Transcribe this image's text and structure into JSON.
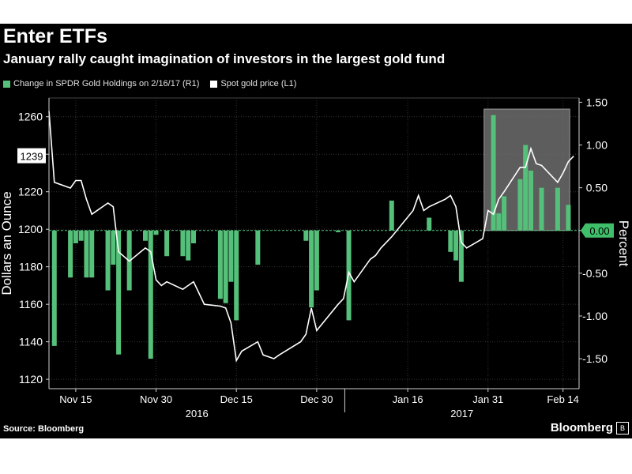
{
  "header": {
    "title": "Enter ETFs",
    "subtitle": "January rally caught imagination of investors in the largest gold fund"
  },
  "footer": {
    "source": "Source: Bloomberg",
    "brand": "Bloomberg"
  },
  "colors": {
    "background": "#000000",
    "bar": "#55c07a",
    "line": "#ffffff",
    "highlight_box": "#6d6d6d",
    "zero_tag": "#3fbf6a"
  },
  "chart_data": {
    "type": "line",
    "legend": [
      {
        "label": "Change in SPDR Gold Holdings on 2/16/17 (R1)",
        "color": "#55c07a"
      },
      {
        "label": "Spot gold price (L1)",
        "color": "#ffffff"
      }
    ],
    "left_axis": {
      "label": "Dollars an Ounce",
      "range": [
        1115,
        1270
      ],
      "ticks": [
        1120,
        1140,
        1160,
        1180,
        1200,
        1220,
        1240,
        1260
      ]
    },
    "right_axis": {
      "label": "Percent",
      "range": [
        -1.85,
        1.55
      ],
      "ticks": [
        "1.50",
        "1.00",
        "0.50",
        "0.00",
        "-0.50",
        "-1.00",
        "-1.50"
      ]
    },
    "x_ticks": [
      "Nov 15",
      "Nov 30",
      "Dec 15",
      "Dec 30",
      "Jan 16",
      "Jan 31",
      "Feb 14"
    ],
    "x_years": [
      "2016",
      "2017"
    ],
    "current_price_label": "1239",
    "zero_label": "0.00",
    "highlight_period": [
      "Jan 31",
      "Feb 16"
    ],
    "bars": [
      {
        "date": "Nov 11",
        "value": -1.35
      },
      {
        "date": "Nov 14",
        "value": -0.55
      },
      {
        "date": "Nov 15",
        "value": -0.15
      },
      {
        "date": "Nov 16",
        "value": -0.12
      },
      {
        "date": "Nov 17",
        "value": -0.55
      },
      {
        "date": "Nov 18",
        "value": -0.55
      },
      {
        "date": "Nov 21",
        "value": -0.7
      },
      {
        "date": "Nov 22",
        "value": -0.4
      },
      {
        "date": "Nov 23",
        "value": -1.45
      },
      {
        "date": "Nov 25",
        "value": -0.7
      },
      {
        "date": "Nov 28",
        "value": -0.12
      },
      {
        "date": "Nov 29",
        "value": -1.5
      },
      {
        "date": "Nov 30",
        "value": -0.05
      },
      {
        "date": "Dec 2",
        "value": -0.3
      },
      {
        "date": "Dec 5",
        "value": -0.3
      },
      {
        "date": "Dec 6",
        "value": -0.35
      },
      {
        "date": "Dec 7",
        "value": -0.15
      },
      {
        "date": "Dec 12",
        "value": -0.8
      },
      {
        "date": "Dec 13",
        "value": -0.85
      },
      {
        "date": "Dec 14",
        "value": -0.6
      },
      {
        "date": "Dec 15",
        "value": -1.05
      },
      {
        "date": "Dec 19",
        "value": -0.4
      },
      {
        "date": "Dec 28",
        "value": -0.12
      },
      {
        "date": "Dec 29",
        "value": -0.9
      },
      {
        "date": "Dec 30",
        "value": -0.7
      },
      {
        "date": "Jan 3",
        "value": -0.02
      },
      {
        "date": "Jan 5",
        "value": -1.05
      },
      {
        "date": "Jan 13",
        "value": 0.35
      },
      {
        "date": "Jan 20",
        "value": 0.15
      },
      {
        "date": "Jan 24",
        "value": -0.25
      },
      {
        "date": "Jan 25",
        "value": -0.35
      },
      {
        "date": "Jan 26",
        "value": -0.6
      },
      {
        "date": "Feb 1",
        "value": 1.35
      },
      {
        "date": "Feb 2",
        "value": 0.2
      },
      {
        "date": "Feb 3",
        "value": 0.4
      },
      {
        "date": "Feb 6",
        "value": 0.6
      },
      {
        "date": "Feb 7",
        "value": 1.0
      },
      {
        "date": "Feb 8",
        "value": 0.7
      },
      {
        "date": "Feb 10",
        "value": 0.5
      },
      {
        "date": "Feb 13",
        "value": 0.5
      },
      {
        "date": "Feb 15",
        "value": 0.3
      }
    ],
    "price_series": [
      {
        "date": "Nov 10",
        "value": 1263
      },
      {
        "date": "Nov 11",
        "value": 1225
      },
      {
        "date": "Nov 14",
        "value": 1222
      },
      {
        "date": "Nov 15",
        "value": 1226
      },
      {
        "date": "Nov 16",
        "value": 1226
      },
      {
        "date": "Nov 17",
        "value": 1216
      },
      {
        "date": "Nov 18",
        "value": 1208
      },
      {
        "date": "Nov 21",
        "value": 1214
      },
      {
        "date": "Nov 22",
        "value": 1212
      },
      {
        "date": "Nov 23",
        "value": 1188
      },
      {
        "date": "Nov 25",
        "value": 1183
      },
      {
        "date": "Nov 28",
        "value": 1190
      },
      {
        "date": "Nov 29",
        "value": 1188
      },
      {
        "date": "Nov 30",
        "value": 1173
      },
      {
        "date": "Dec 1",
        "value": 1170
      },
      {
        "date": "Dec 2",
        "value": 1172
      },
      {
        "date": "Dec 5",
        "value": 1168
      },
      {
        "date": "Dec 6",
        "value": 1170
      },
      {
        "date": "Dec 7",
        "value": 1172
      },
      {
        "date": "Dec 8",
        "value": 1166
      },
      {
        "date": "Dec 9",
        "value": 1160
      },
      {
        "date": "Dec 12",
        "value": 1159
      },
      {
        "date": "Dec 13",
        "value": 1158
      },
      {
        "date": "Dec 14",
        "value": 1150
      },
      {
        "date": "Dec 15",
        "value": 1130
      },
      {
        "date": "Dec 16",
        "value": 1135
      },
      {
        "date": "Dec 19",
        "value": 1140
      },
      {
        "date": "Dec 20",
        "value": 1133
      },
      {
        "date": "Dec 21",
        "value": 1132
      },
      {
        "date": "Dec 22",
        "value": 1131
      },
      {
        "date": "Dec 23",
        "value": 1133
      },
      {
        "date": "Dec 27",
        "value": 1140
      },
      {
        "date": "Dec 28",
        "value": 1144
      },
      {
        "date": "Dec 29",
        "value": 1158
      },
      {
        "date": "Dec 30",
        "value": 1146
      },
      {
        "date": "Jan 3",
        "value": 1160
      },
      {
        "date": "Jan 4",
        "value": 1163
      },
      {
        "date": "Jan 5",
        "value": 1177
      },
      {
        "date": "Jan 6",
        "value": 1172
      },
      {
        "date": "Jan 9",
        "value": 1184
      },
      {
        "date": "Jan 10",
        "value": 1186
      },
      {
        "date": "Jan 11",
        "value": 1190
      },
      {
        "date": "Jan 12",
        "value": 1193
      },
      {
        "date": "Jan 13",
        "value": 1196
      },
      {
        "date": "Jan 17",
        "value": 1210
      },
      {
        "date": "Jan 18",
        "value": 1218
      },
      {
        "date": "Jan 19",
        "value": 1210
      },
      {
        "date": "Jan 20",
        "value": 1212
      },
      {
        "date": "Jan 23",
        "value": 1216
      },
      {
        "date": "Jan 24",
        "value": 1218
      },
      {
        "date": "Jan 25",
        "value": 1212
      },
      {
        "date": "Jan 26",
        "value": 1193
      },
      {
        "date": "Jan 27",
        "value": 1190
      },
      {
        "date": "Jan 30",
        "value": 1195
      },
      {
        "date": "Jan 31",
        "value": 1210
      },
      {
        "date": "Feb 1",
        "value": 1208
      },
      {
        "date": "Feb 2",
        "value": 1216
      },
      {
        "date": "Feb 3",
        "value": 1220
      },
      {
        "date": "Feb 6",
        "value": 1233
      },
      {
        "date": "Feb 7",
        "value": 1233
      },
      {
        "date": "Feb 8",
        "value": 1243
      },
      {
        "date": "Feb 9",
        "value": 1235
      },
      {
        "date": "Feb 10",
        "value": 1234
      },
      {
        "date": "Feb 13",
        "value": 1225
      },
      {
        "date": "Feb 14",
        "value": 1230
      },
      {
        "date": "Feb 15",
        "value": 1236
      },
      {
        "date": "Feb 16",
        "value": 1239
      }
    ]
  }
}
